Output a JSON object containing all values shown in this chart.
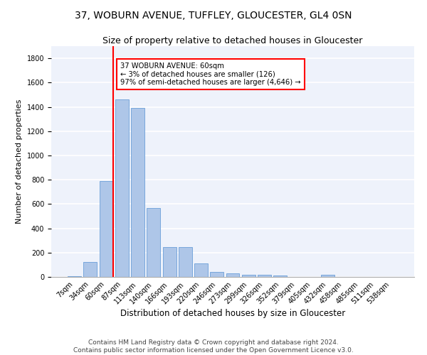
{
  "title1": "37, WOBURN AVENUE, TUFFLEY, GLOUCESTER, GL4 0SN",
  "title2": "Size of property relative to detached houses in Gloucester",
  "xlabel": "Distribution of detached houses by size in Gloucester",
  "ylabel": "Number of detached properties",
  "categories": [
    "7sqm",
    "34sqm",
    "60sqm",
    "87sqm",
    "113sqm",
    "140sqm",
    "166sqm",
    "193sqm",
    "220sqm",
    "246sqm",
    "273sqm",
    "299sqm",
    "326sqm",
    "352sqm",
    "379sqm",
    "405sqm",
    "432sqm",
    "458sqm",
    "485sqm",
    "511sqm",
    "538sqm"
  ],
  "values": [
    5,
    125,
    790,
    1460,
    1390,
    565,
    245,
    245,
    110,
    40,
    27,
    18,
    17,
    14,
    1,
    1,
    18,
    1,
    0,
    0,
    0
  ],
  "bar_color": "#aec6e8",
  "bar_edge_color": "#6a9fd8",
  "vline_x": 2.425,
  "vline_color": "red",
  "annotation_text": "37 WOBURN AVENUE: 60sqm\n← 3% of detached houses are smaller (126)\n97% of semi-detached houses are larger (4,646) →",
  "annotation_box_color": "white",
  "annotation_box_edge_color": "red",
  "ylim": [
    0,
    1900
  ],
  "yticks": [
    0,
    200,
    400,
    600,
    800,
    1000,
    1200,
    1400,
    1600,
    1800
  ],
  "footer1": "Contains HM Land Registry data © Crown copyright and database right 2024.",
  "footer2": "Contains public sector information licensed under the Open Government Licence v3.0.",
  "bg_color": "#eef2fb",
  "grid_color": "white",
  "title1_fontsize": 10,
  "title2_fontsize": 9,
  "xlabel_fontsize": 8.5,
  "ylabel_fontsize": 8,
  "tick_fontsize": 7,
  "footer_fontsize": 6.5,
  "ann_fontsize": 7.2
}
